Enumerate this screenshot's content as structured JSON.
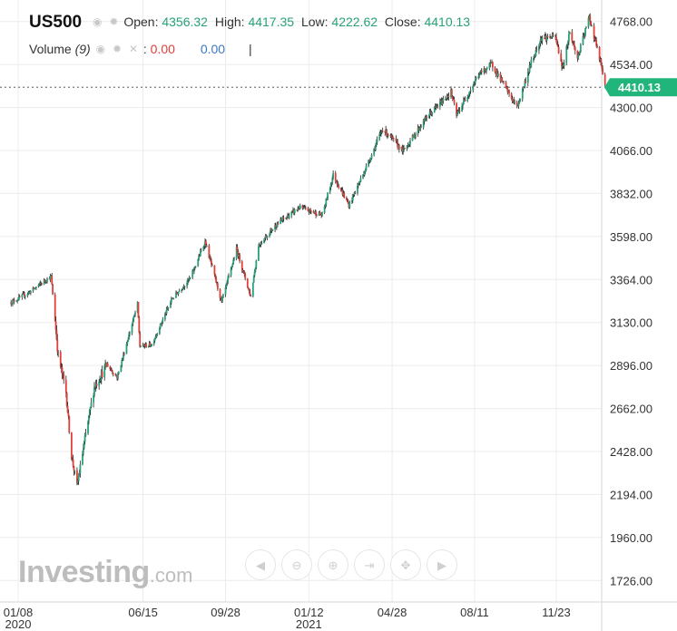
{
  "legend": {
    "symbol": "US500",
    "open_label": "Open:",
    "open_value": "4356.32",
    "high_label": "High:",
    "high_value": "4417.35",
    "low_label": "Low:",
    "low_value": "4222.62",
    "close_label": "Close:",
    "close_value": "4410.13",
    "volume_label": "Volume",
    "volume_param": "(9)",
    "volume_sep": ":",
    "volume_value_1": "0.00",
    "volume_value_2": "0.00",
    "pipe": "|"
  },
  "logo": {
    "main": "Investing",
    "suffix": ".com"
  },
  "nav_buttons": [
    {
      "name": "scroll-left-icon",
      "glyph": "◀"
    },
    {
      "name": "zoom-out-icon",
      "glyph": "⊖"
    },
    {
      "name": "zoom-in-icon",
      "glyph": "⊕"
    },
    {
      "name": "scroll-forward-icon",
      "glyph": "⇥"
    },
    {
      "name": "reset-icon",
      "glyph": "✥"
    },
    {
      "name": "scroll-right-icon",
      "glyph": "▶"
    }
  ],
  "colors": {
    "up": "#26a17b",
    "down": "#e0403a",
    "wick": "#222222",
    "grid": "#ececec",
    "axis_text": "#333333",
    "last_price_bg": "#21b57c"
  },
  "chart_data": {
    "type": "candlestick",
    "title": "",
    "xlabel": "",
    "ylabel": "",
    "ylim": [
      1609,
      4885
    ],
    "y_ticks": [
      4768,
      4534,
      4300,
      4066,
      3832,
      3598,
      3364,
      3130,
      2896,
      2662,
      2428,
      2194,
      1960,
      1726
    ],
    "y_tick_labels": [
      "4768.00",
      "4534.00",
      "4300.00",
      "4066.00",
      "3832.00",
      "3598.00",
      "3364.00",
      "3130.00",
      "2896.00",
      "2662.00",
      "2428.00",
      "2194.00",
      "1960.00",
      "1726.00"
    ],
    "x_ticks": [
      {
        "date": "2020-01-08",
        "label": "01/08",
        "sub": "2020"
      },
      {
        "date": "2020-06-15",
        "label": "06/15",
        "sub": ""
      },
      {
        "date": "2020-09-28",
        "label": "09/28",
        "sub": ""
      },
      {
        "date": "2021-01-12",
        "label": "01/12",
        "sub": "2021"
      },
      {
        "date": "2021-04-28",
        "label": "04/28",
        "sub": ""
      },
      {
        "date": "2021-08-11",
        "label": "08/11",
        "sub": ""
      },
      {
        "date": "2021-11-23",
        "label": "11/23",
        "sub": ""
      }
    ],
    "grid": true,
    "last_price": "4410.13",
    "price_points": [
      [
        "2019-12-30",
        3240
      ],
      [
        "2020-01-08",
        3260
      ],
      [
        "2020-01-24",
        3300
      ],
      [
        "2020-02-10",
        3355
      ],
      [
        "2020-02-19",
        3380
      ],
      [
        "2020-02-28",
        2950
      ],
      [
        "2020-03-09",
        2750
      ],
      [
        "2020-03-16",
        2400
      ],
      [
        "2020-03-23",
        2240
      ],
      [
        "2020-04-01",
        2470
      ],
      [
        "2020-04-14",
        2780
      ],
      [
        "2020-04-30",
        2900
      ],
      [
        "2020-05-13",
        2830
      ],
      [
        "2020-06-08",
        3230
      ],
      [
        "2020-06-11",
        3000
      ],
      [
        "2020-06-26",
        3010
      ],
      [
        "2020-07-22",
        3260
      ],
      [
        "2020-08-14",
        3370
      ],
      [
        "2020-09-02",
        3570
      ],
      [
        "2020-09-23",
        3240
      ],
      [
        "2020-10-12",
        3530
      ],
      [
        "2020-10-30",
        3270
      ],
      [
        "2020-11-09",
        3550
      ],
      [
        "2020-12-01",
        3660
      ],
      [
        "2020-12-31",
        3756
      ],
      [
        "2021-01-29",
        3714
      ],
      [
        "2021-02-12",
        3934
      ],
      [
        "2021-03-04",
        3768
      ],
      [
        "2021-03-26",
        3974
      ],
      [
        "2021-04-16",
        4185
      ],
      [
        "2021-05-12",
        4063
      ],
      [
        "2021-06-11",
        4247
      ],
      [
        "2021-07-12",
        4384
      ],
      [
        "2021-07-19",
        4258
      ],
      [
        "2021-08-16",
        4479
      ],
      [
        "2021-09-02",
        4536
      ],
      [
        "2021-10-04",
        4300
      ],
      [
        "2021-10-22",
        4544
      ],
      [
        "2021-11-04",
        4680
      ],
      [
        "2021-11-22",
        4682
      ],
      [
        "2021-12-01",
        4513
      ],
      [
        "2021-12-10",
        4712
      ],
      [
        "2021-12-20",
        4568
      ],
      [
        "2022-01-04",
        4793
      ],
      [
        "2022-01-19",
        4532
      ],
      [
        "2022-01-24",
        4410
      ]
    ]
  }
}
